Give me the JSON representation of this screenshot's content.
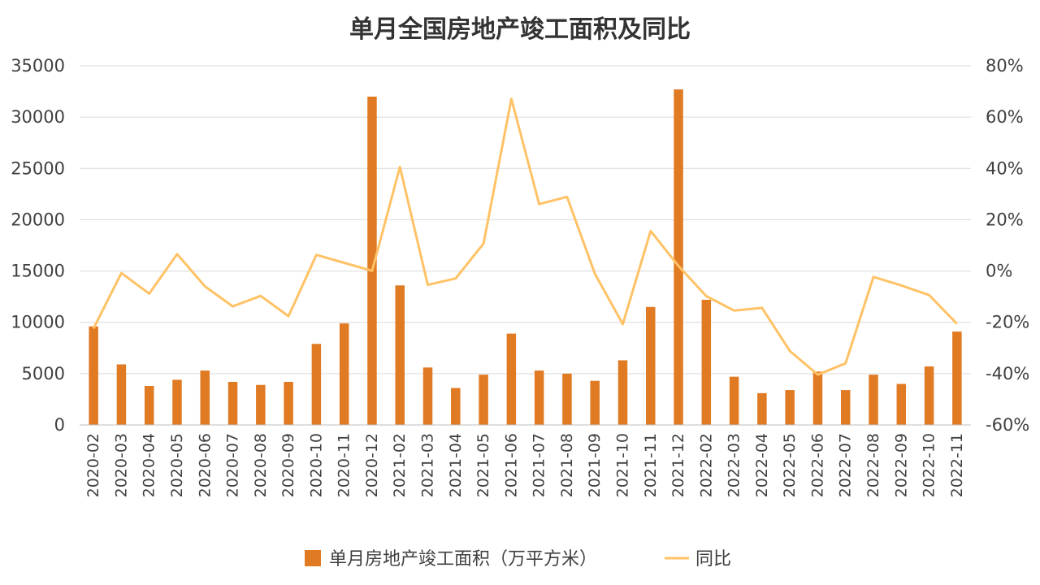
{
  "chart_data": {
    "type": "bar",
    "title": "单月全国房地产竣工面积及同比",
    "categories": [
      "2020-02",
      "2020-03",
      "2020-04",
      "2020-05",
      "2020-06",
      "2020-07",
      "2020-08",
      "2020-09",
      "2020-10",
      "2020-11",
      "2020-12",
      "2021-02",
      "2021-03",
      "2021-04",
      "2021-05",
      "2021-06",
      "2021-07",
      "2021-08",
      "2021-09",
      "2021-10",
      "2021-11",
      "2021-12",
      "2022-02",
      "2022-03",
      "2022-04",
      "2022-05",
      "2022-06",
      "2022-07",
      "2022-08",
      "2022-09",
      "2022-10",
      "2022-11"
    ],
    "series": [
      {
        "name": "单月房地产竣工面积（万平方米）",
        "type": "bar",
        "axis": "left",
        "color": "#e07b24",
        "values": [
          9600,
          5900,
          3800,
          4400,
          5300,
          4200,
          3900,
          4200,
          7900,
          9900,
          32000,
          13600,
          5600,
          3600,
          4900,
          8900,
          5300,
          5000,
          4300,
          6300,
          11500,
          32700,
          12200,
          4700,
          3100,
          3400,
          5200,
          3400,
          4900,
          4000,
          5700,
          9100
        ]
      },
      {
        "name": "同比",
        "type": "line",
        "axis": "right",
        "color": "#ffc266",
        "values": [
          -22.4,
          -0.8,
          -8.8,
          6.6,
          -6.0,
          -13.8,
          -9.7,
          -17.6,
          6.3,
          3.2,
          0.1,
          40.6,
          -5.4,
          -2.9,
          10.7,
          67.1,
          26.1,
          28.9,
          -1.1,
          -20.7,
          15.6,
          2.0,
          -9.8,
          -15.4,
          -14.4,
          -31.2,
          -40.4,
          -36.0,
          -2.3,
          -5.6,
          -9.4,
          -20.6
        ]
      }
    ],
    "ylim": [
      0,
      35000
    ],
    "y_ticks": [
      "0",
      "5000",
      "10000",
      "15000",
      "20000",
      "25000",
      "30000",
      "35000"
    ],
    "y2lim": [
      -60,
      80
    ],
    "y2_ticks": [
      "-60%",
      "-40%",
      "-20%",
      "0%",
      "20%",
      "40%",
      "60%",
      "80%"
    ],
    "grid": true,
    "legend_position": "bottom"
  }
}
